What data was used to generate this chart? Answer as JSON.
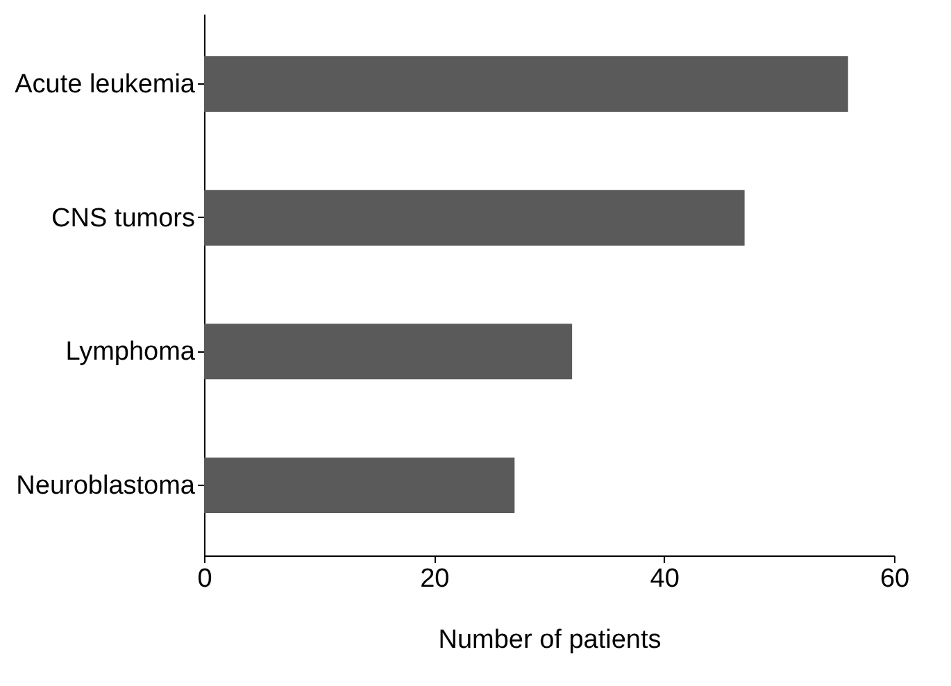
{
  "chart_data": {
    "type": "bar",
    "orientation": "horizontal",
    "xlabel": "Number of patients",
    "categories": [
      "Acute leukemia",
      "CNS tumors",
      "Lymphoma",
      "Neuroblastoma"
    ],
    "values": [
      56,
      47,
      32,
      27
    ],
    "color": "#5a5a5a",
    "xlim": [
      0,
      60
    ],
    "xticks": [
      0,
      20,
      40,
      60
    ],
    "grid": false
  }
}
